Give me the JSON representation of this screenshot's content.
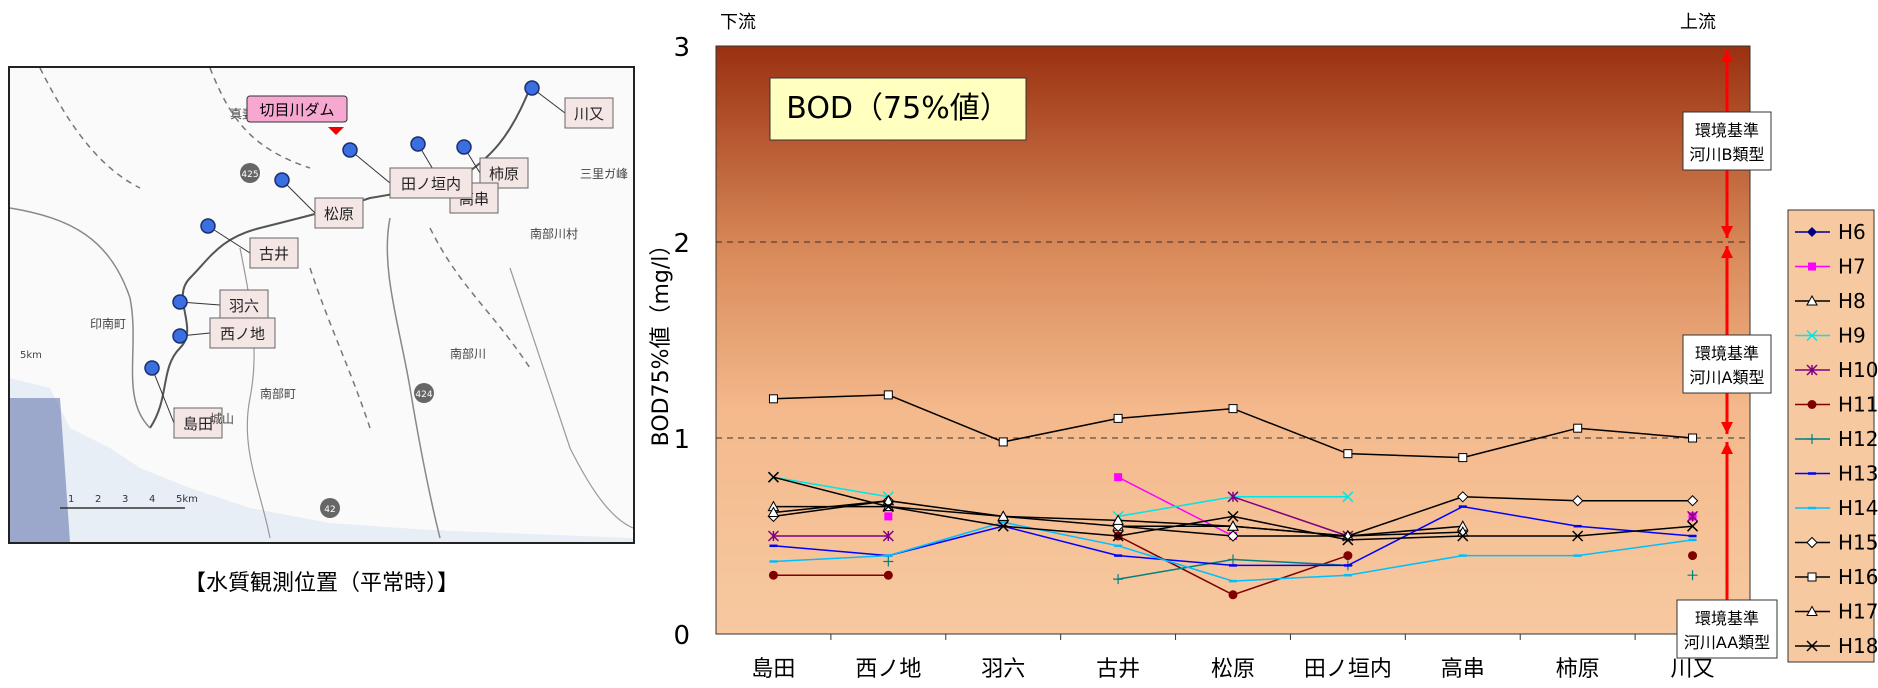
{
  "map": {
    "caption": "【水質観測位置（平常時）】",
    "dam_label": "切目川ダム",
    "place_labels": [
      "真妻山",
      "三里ガ峰",
      "南部川村",
      "印南町",
      "南部川",
      "南部町",
      "城山",
      "5km"
    ],
    "route_labels": [
      "425",
      "424",
      "42"
    ],
    "scale_ticks": [
      "1",
      "2",
      "3",
      "4",
      "5km"
    ],
    "stations": [
      "川又",
      "柿原",
      "高串",
      "田ノ垣内",
      "松原",
      "古井",
      "羽六",
      "西ノ地",
      "島田"
    ],
    "colors": {
      "station_fill": "#3b6fe0",
      "dam_label_bg": "#f7a8d0"
    }
  },
  "chart_data": {
    "type": "line",
    "title": "BOD（75%値）",
    "ylabel": "BOD75%値（mg/l）",
    "xlabel": "",
    "ylim": [
      0,
      3
    ],
    "yticks": [
      "0",
      "1",
      "2",
      "3"
    ],
    "categories": [
      "島田",
      "西ノ地",
      "羽六",
      "古井",
      "松原",
      "田ノ垣内",
      "高串",
      "柿原",
      "川又"
    ],
    "top_left_label": "下流",
    "top_right_label": "上流",
    "grid_dashed_at": [
      1,
      2
    ],
    "legend_position": "right",
    "standards": [
      {
        "label1": "環境基準",
        "label2": "河川B類型",
        "range": [
          2,
          3
        ]
      },
      {
        "label1": "環境基準",
        "label2": "河川A類型",
        "range": [
          1,
          2
        ]
      },
      {
        "label1": "環境基準",
        "label2": "河川AA類型",
        "range": [
          0,
          1
        ]
      }
    ],
    "series": [
      {
        "name": "H6",
        "color": "#00008b",
        "marker": "diamond-filled",
        "values": [
          null,
          null,
          null,
          null,
          null,
          null,
          null,
          null,
          null
        ]
      },
      {
        "name": "H7",
        "color": "#ff00ff",
        "marker": "square-filled",
        "values": [
          null,
          0.6,
          null,
          0.8,
          0.5,
          null,
          null,
          null,
          0.6
        ]
      },
      {
        "name": "H8",
        "color": "#000000",
        "marker": "triangle-open",
        "values": [
          0.65,
          0.65,
          0.6,
          0.55,
          0.55,
          0.5,
          0.55,
          null,
          null
        ]
      },
      {
        "name": "H9",
        "color": "#00e5e5",
        "marker": "x",
        "values": [
          0.8,
          0.7,
          null,
          0.6,
          0.7,
          0.7,
          null,
          null,
          null
        ]
      },
      {
        "name": "H10",
        "color": "#800080",
        "marker": "star",
        "values": [
          0.5,
          0.5,
          null,
          null,
          0.7,
          0.5,
          null,
          null,
          0.6
        ]
      },
      {
        "name": "H11",
        "color": "#800000",
        "marker": "circle-filled",
        "values": [
          0.3,
          0.3,
          null,
          0.5,
          0.2,
          0.4,
          null,
          null,
          0.4
        ]
      },
      {
        "name": "H12",
        "color": "#008080",
        "marker": "plus",
        "values": [
          null,
          0.37,
          null,
          0.28,
          0.38,
          0.35,
          null,
          null,
          0.3
        ]
      },
      {
        "name": "H13",
        "color": "#0000ff",
        "marker": "dash",
        "values": [
          0.45,
          0.4,
          0.55,
          0.4,
          0.35,
          0.35,
          0.65,
          0.55,
          0.5
        ]
      },
      {
        "name": "H14",
        "color": "#00bfff",
        "marker": "dash",
        "values": [
          0.37,
          0.4,
          0.57,
          0.45,
          0.27,
          0.3,
          0.4,
          0.4,
          0.48
        ]
      },
      {
        "name": "H15",
        "color": "#000000",
        "marker": "diamond-open",
        "values": [
          0.6,
          0.68,
          null,
          0.55,
          0.5,
          0.5,
          0.7,
          0.68,
          0.68
        ]
      },
      {
        "name": "H16",
        "color": "#000000",
        "marker": "square-open",
        "values": [
          1.2,
          1.22,
          0.98,
          1.1,
          1.15,
          0.92,
          0.9,
          1.05,
          1.0
        ]
      },
      {
        "name": "H17",
        "color": "#000000",
        "marker": "triangle-open",
        "values": [
          0.62,
          0.68,
          0.6,
          0.58,
          0.55,
          0.5,
          0.52,
          null,
          null
        ]
      },
      {
        "name": "H18",
        "color": "#000000",
        "marker": "x",
        "values": [
          0.8,
          0.65,
          0.55,
          0.5,
          0.6,
          0.48,
          0.5,
          0.5,
          0.55
        ]
      }
    ]
  }
}
